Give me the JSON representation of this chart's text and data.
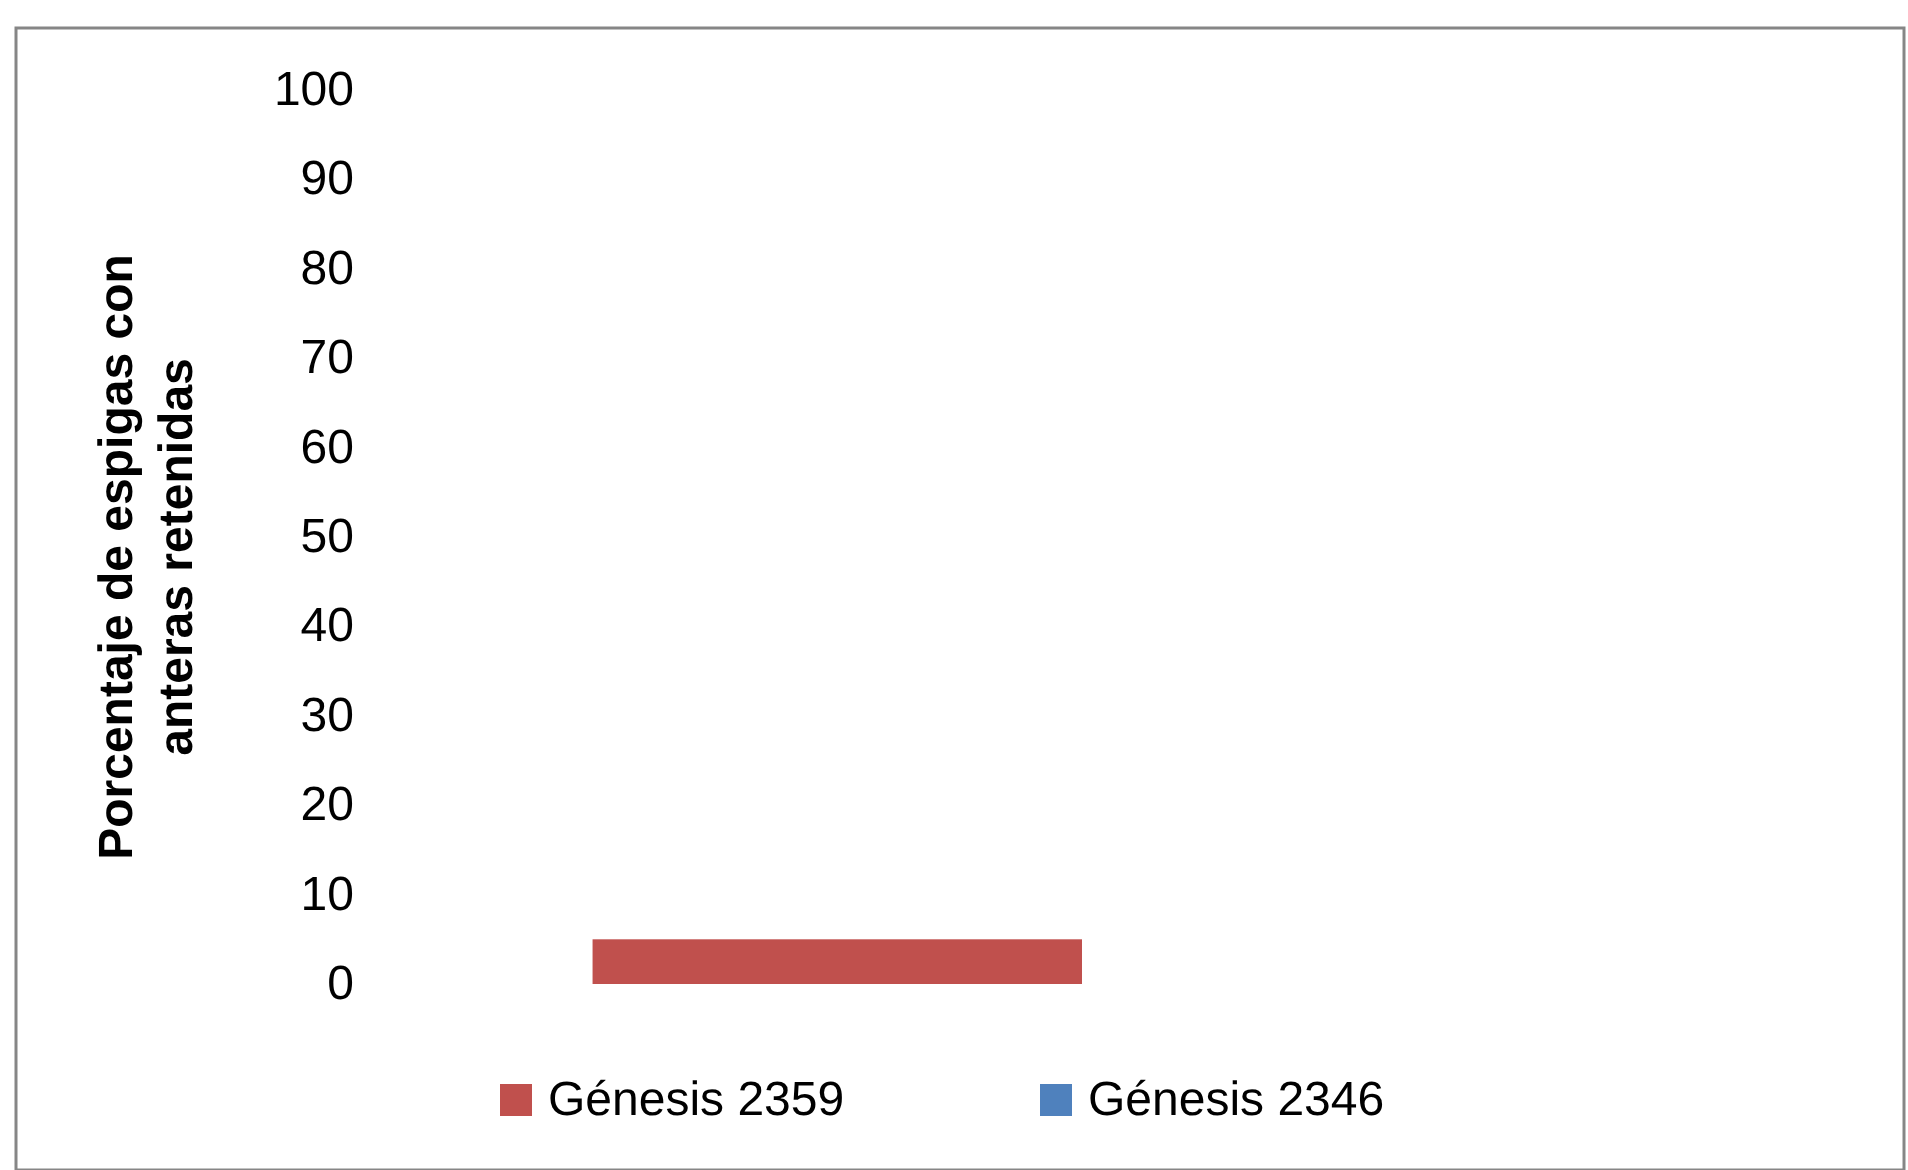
{
  "chart_data": {
    "type": "bar",
    "ylabel": "Porcentaje de espigas con anteras retenidas",
    "categories": [
      null
    ],
    "series": [
      {
        "name": "Génesis 2359",
        "color": "#c0504d",
        "values": [
          5
        ]
      },
      {
        "name": "Génesis 2346",
        "color": "#4f81bd",
        "values": [
          0
        ]
      }
    ],
    "ylim": [
      0,
      100
    ],
    "yticks": [
      0,
      10,
      20,
      30,
      40,
      50,
      60,
      70,
      80,
      90,
      100
    ],
    "legend": "bottom"
  }
}
